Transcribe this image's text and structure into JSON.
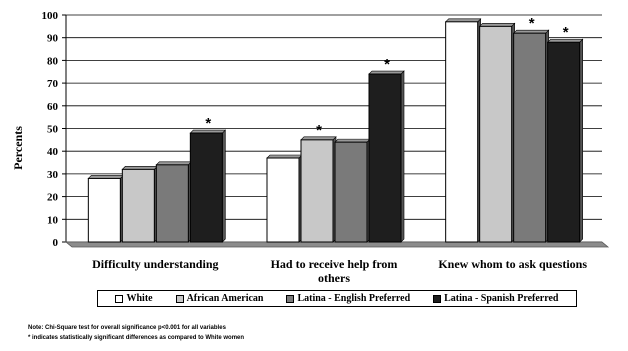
{
  "chart_data": {
    "type": "bar",
    "ylabel": "Percents",
    "ylim": [
      0,
      100
    ],
    "yticks": [
      0,
      10,
      20,
      30,
      40,
      50,
      60,
      70,
      80,
      90,
      100
    ],
    "grid": true,
    "legend_position": "bottom",
    "categories": [
      [
        "Difficulty understanding"
      ],
      [
        "Had to receive help from",
        "others"
      ],
      [
        "Knew whom to ask questions"
      ]
    ],
    "series": [
      {
        "name": "White",
        "color": "#ffffff",
        "values": [
          28,
          37,
          97
        ]
      },
      {
        "name": "African American",
        "color": "#c8c8c8",
        "values": [
          32,
          45,
          95
        ]
      },
      {
        "name": "Latina - English Preferred",
        "color": "#7a7a7a",
        "values": [
          34,
          44,
          92
        ]
      },
      {
        "name": "Latina - Spanish Preferred",
        "color": "#1e1e1e",
        "values": [
          48,
          74,
          88
        ]
      }
    ],
    "significance_marks": [
      {
        "category": 0,
        "series": 3,
        "label": "*"
      },
      {
        "category": 1,
        "series": 1,
        "label": "*"
      },
      {
        "category": 1,
        "series": 3,
        "label": "*"
      },
      {
        "category": 2,
        "series": 2,
        "label": "*"
      },
      {
        "category": 2,
        "series": 3,
        "label": "*"
      }
    ]
  },
  "notes": {
    "line1": "Note:  Chi-Square test for overall significance p<0.001 for all variables",
    "line2": "* indicates statistically significant differences as compared to White women"
  }
}
